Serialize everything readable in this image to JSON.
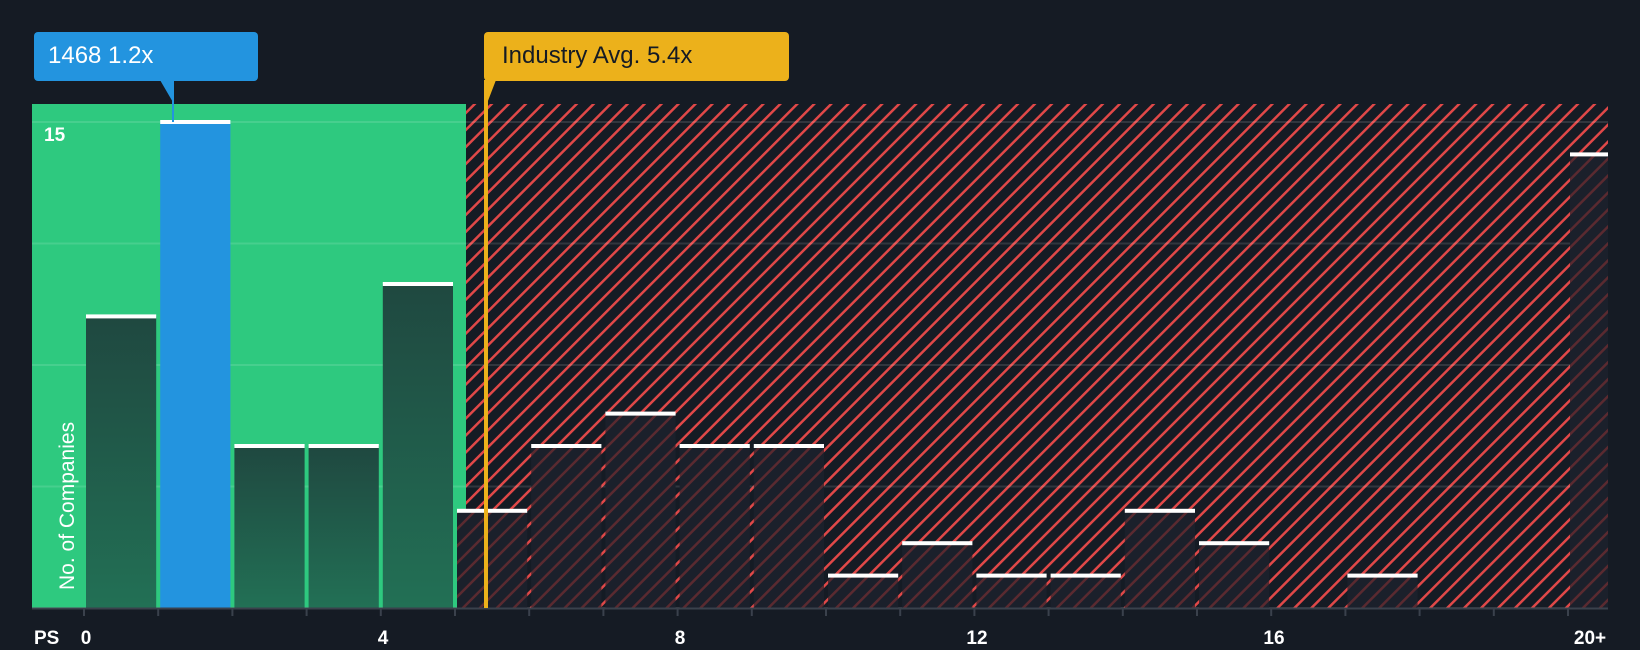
{
  "company_callout": {
    "label": "1468 1.2x",
    "ticker": "1468",
    "value": "1.2x"
  },
  "industry_callout": {
    "label": "Industry Avg. 5.4x",
    "value": "5.4x"
  },
  "axis": {
    "y_label": "No. of Companies",
    "y_tick": "15",
    "x_name": "PS",
    "x_ticks": [
      "0",
      "4",
      "8",
      "12",
      "16",
      "20+"
    ]
  },
  "colors": {
    "background": "#151b24",
    "undervalued_zone": "#2ec97f",
    "company_bar": "#2394df",
    "industry_line": "#ecb11b",
    "overvalued_hatch": "#e04848",
    "bar_fill_green": "#1f4c3e",
    "bar_fill_dark": "#1b202b",
    "bar_cap": "#ffffff"
  },
  "chart_data": {
    "type": "bar",
    "title": "",
    "xlabel": "PS",
    "ylabel": "No. of Companies",
    "categories": [
      "0-1",
      "1-2",
      "2-3",
      "3-4",
      "4-5",
      "5-6",
      "6-7",
      "7-8",
      "8-9",
      "9-10",
      "10-11",
      "11-12",
      "12-13",
      "13-14",
      "14-15",
      "15-16",
      "16-17",
      "17-18",
      "18-19",
      "19-20",
      "20+"
    ],
    "values": [
      9,
      15,
      5,
      5,
      10,
      3,
      5,
      6,
      5,
      5,
      1,
      2,
      1,
      1,
      3,
      2,
      0,
      1,
      0,
      0,
      14
    ],
    "highlight": {
      "category": "1-2",
      "label": "1468 1.2x",
      "value": 1.2
    },
    "reference_line": {
      "label": "Industry Avg. 5.4x",
      "value": 5.4
    },
    "x_tick_labels": [
      "0",
      "4",
      "8",
      "12",
      "16",
      "20+"
    ],
    "y_tick_labels": [
      "15"
    ],
    "ylim": [
      0,
      15
    ],
    "grid": true,
    "legend": "none"
  }
}
